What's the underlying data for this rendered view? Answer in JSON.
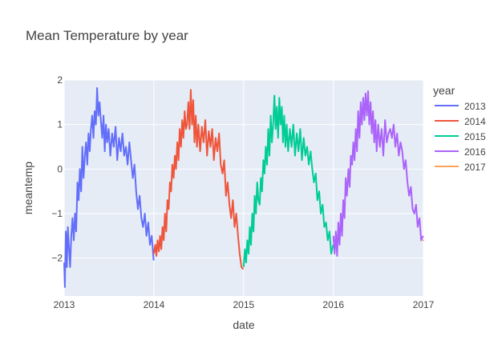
{
  "chart_data": {
    "type": "line",
    "title": "Mean Temperature by year",
    "xlabel": "date",
    "ylabel": "meantemp",
    "x_range": [
      "2013-01-01",
      "2017-01-01"
    ],
    "ylim": [
      -2.85,
      2.0
    ],
    "x_ticks": [
      "2013",
      "2014",
      "2015",
      "2016",
      "2017"
    ],
    "y_ticks": [
      2,
      1,
      0,
      -1,
      -2
    ],
    "grid": true,
    "legend": {
      "title": "year",
      "position": "right"
    },
    "series": [
      {
        "name": "2013",
        "color": "#636efa",
        "x": [
          "2013-01-01",
          "2013-01-04",
          "2013-01-08",
          "2013-01-12",
          "2013-01-16",
          "2013-01-20",
          "2013-01-25",
          "2013-01-30",
          "2013-02-04",
          "2013-02-09",
          "2013-02-14",
          "2013-02-19",
          "2013-02-24",
          "2013-03-01",
          "2013-03-06",
          "2013-03-11",
          "2013-03-16",
          "2013-03-21",
          "2013-03-26",
          "2013-03-31",
          "2013-04-05",
          "2013-04-10",
          "2013-04-15",
          "2013-04-20",
          "2013-04-25",
          "2013-04-30",
          "2013-05-05",
          "2013-05-10",
          "2013-05-15",
          "2013-05-20",
          "2013-05-25",
          "2013-05-30",
          "2013-06-05",
          "2013-06-10",
          "2013-06-15",
          "2013-06-20",
          "2013-06-25",
          "2013-07-01",
          "2013-07-08",
          "2013-07-15",
          "2013-07-22",
          "2013-07-29",
          "2013-08-05",
          "2013-08-12",
          "2013-08-19",
          "2013-08-26",
          "2013-09-02",
          "2013-09-09",
          "2013-09-16",
          "2013-09-23",
          "2013-09-30",
          "2013-10-07",
          "2013-10-14",
          "2013-10-21",
          "2013-10-28",
          "2013-11-04",
          "2013-11-11",
          "2013-11-18",
          "2013-11-25",
          "2013-12-02",
          "2013-12-09",
          "2013-12-16",
          "2013-12-23",
          "2013-12-31"
        ],
        "y": [
          -2.1,
          -2.65,
          -1.4,
          -2.2,
          -1.3,
          -1.7,
          -2.2,
          -1.5,
          -1.1,
          -1.6,
          -1.0,
          -1.4,
          -0.3,
          -0.7,
          0.0,
          -0.5,
          0.5,
          -0.2,
          0.3,
          0.6,
          0.1,
          0.8,
          0.4,
          0.9,
          1.2,
          0.7,
          1.3,
          1.0,
          1.82,
          1.2,
          1.5,
          1.1,
          0.7,
          1.2,
          0.4,
          1.0,
          0.6,
          0.9,
          0.3,
          0.8,
          0.5,
          0.95,
          0.2,
          0.7,
          0.4,
          0.8,
          0.3,
          0.5,
          0.1,
          0.6,
          0.2,
          -0.2,
          0.1,
          -0.5,
          -0.9,
          -0.6,
          -1.1,
          -1.3,
          -1.0,
          -1.5,
          -1.2,
          -1.7,
          -1.5,
          -2.05
        ]
      },
      {
        "name": "2014",
        "color": "#ef553b",
        "x": [
          "2014-01-01",
          "2014-01-06",
          "2014-01-11",
          "2014-01-16",
          "2014-01-21",
          "2014-01-26",
          "2014-01-31",
          "2014-02-05",
          "2014-02-10",
          "2014-02-15",
          "2014-02-20",
          "2014-02-25",
          "2014-03-02",
          "2014-03-07",
          "2014-03-12",
          "2014-03-17",
          "2014-03-22",
          "2014-03-27",
          "2014-04-01",
          "2014-04-06",
          "2014-04-11",
          "2014-04-16",
          "2014-04-21",
          "2014-04-26",
          "2014-05-01",
          "2014-05-06",
          "2014-05-11",
          "2014-05-16",
          "2014-05-21",
          "2014-05-26",
          "2014-05-31",
          "2014-06-05",
          "2014-06-10",
          "2014-06-15",
          "2014-06-20",
          "2014-06-25",
          "2014-07-01",
          "2014-07-08",
          "2014-07-15",
          "2014-07-22",
          "2014-07-29",
          "2014-08-05",
          "2014-08-12",
          "2014-08-19",
          "2014-08-26",
          "2014-09-02",
          "2014-09-09",
          "2014-09-16",
          "2014-09-23",
          "2014-09-30",
          "2014-10-07",
          "2014-10-14",
          "2014-10-21",
          "2014-10-28",
          "2014-11-04",
          "2014-11-11",
          "2014-11-18",
          "2014-11-25",
          "2014-12-02",
          "2014-12-09",
          "2014-12-16",
          "2014-12-23",
          "2014-12-31"
        ],
        "y": [
          -1.9,
          -1.7,
          -1.95,
          -1.6,
          -1.85,
          -1.5,
          -1.8,
          -1.3,
          -1.6,
          -1.0,
          -1.4,
          -0.7,
          -0.9,
          -0.3,
          -0.5,
          0.1,
          -0.2,
          0.3,
          0.0,
          0.6,
          0.2,
          0.9,
          0.5,
          1.1,
          0.7,
          1.3,
          0.9,
          1.0,
          1.5,
          0.9,
          1.78,
          1.0,
          1.55,
          0.6,
          1.2,
          0.5,
          1.0,
          0.4,
          0.95,
          0.6,
          1.1,
          0.3,
          0.85,
          0.5,
          0.9,
          0.2,
          0.7,
          0.4,
          0.8,
          0.1,
          -0.1,
          0.2,
          -0.6,
          -0.3,
          -0.8,
          -1.1,
          -0.7,
          -1.3,
          -1.0,
          -1.5,
          -1.9,
          -2.2,
          -2.25
        ]
      },
      {
        "name": "2015",
        "color": "#00cc96",
        "x": [
          "2015-01-01",
          "2015-01-06",
          "2015-01-11",
          "2015-01-16",
          "2015-01-21",
          "2015-01-26",
          "2015-01-31",
          "2015-02-05",
          "2015-02-10",
          "2015-02-15",
          "2015-02-20",
          "2015-02-25",
          "2015-03-02",
          "2015-03-07",
          "2015-03-12",
          "2015-03-17",
          "2015-03-22",
          "2015-03-27",
          "2015-04-01",
          "2015-04-06",
          "2015-04-11",
          "2015-04-16",
          "2015-04-21",
          "2015-04-26",
          "2015-05-01",
          "2015-05-06",
          "2015-05-11",
          "2015-05-16",
          "2015-05-21",
          "2015-05-26",
          "2015-05-31",
          "2015-06-05",
          "2015-06-10",
          "2015-06-15",
          "2015-06-20",
          "2015-06-25",
          "2015-07-01",
          "2015-07-08",
          "2015-07-15",
          "2015-07-22",
          "2015-07-29",
          "2015-08-05",
          "2015-08-12",
          "2015-08-19",
          "2015-08-26",
          "2015-09-02",
          "2015-09-09",
          "2015-09-16",
          "2015-09-23",
          "2015-09-30",
          "2015-10-07",
          "2015-10-14",
          "2015-10-21",
          "2015-10-28",
          "2015-11-04",
          "2015-11-11",
          "2015-11-18",
          "2015-11-25",
          "2015-12-02",
          "2015-12-09",
          "2015-12-16",
          "2015-12-23",
          "2015-12-31"
        ],
        "y": [
          -2.2,
          -1.8,
          -2.1,
          -1.6,
          -1.9,
          -1.3,
          -1.7,
          -1.0,
          -1.4,
          -0.6,
          -1.0,
          -0.3,
          -0.7,
          -0.8,
          -0.2,
          -0.5,
          0.2,
          -0.1,
          0.5,
          0.1,
          0.9,
          0.3,
          1.2,
          0.6,
          1.0,
          1.65,
          0.9,
          1.4,
          0.7,
          1.6,
          1.0,
          1.4,
          0.6,
          1.2,
          0.5,
          1.0,
          0.4,
          0.9,
          0.5,
          1.0,
          0.3,
          0.8,
          0.4,
          0.9,
          0.2,
          0.7,
          0.3,
          0.5,
          0.1,
          0.4,
          0.0,
          -0.3,
          -0.1,
          -0.7,
          -0.5,
          -1.0,
          -0.8,
          -1.3,
          -1.2,
          -1.6,
          -1.4,
          -1.9,
          -1.7
        ]
      },
      {
        "name": "2016",
        "color": "#ab63fa",
        "x": [
          "2016-01-01",
          "2016-01-06",
          "2016-01-11",
          "2016-01-16",
          "2016-01-21",
          "2016-01-26",
          "2016-01-31",
          "2016-02-05",
          "2016-02-10",
          "2016-02-15",
          "2016-02-20",
          "2016-02-25",
          "2016-03-02",
          "2016-03-07",
          "2016-03-12",
          "2016-03-17",
          "2016-03-22",
          "2016-03-27",
          "2016-04-01",
          "2016-04-06",
          "2016-04-11",
          "2016-04-16",
          "2016-04-21",
          "2016-04-26",
          "2016-05-01",
          "2016-05-06",
          "2016-05-11",
          "2016-05-16",
          "2016-05-21",
          "2016-05-26",
          "2016-05-31",
          "2016-06-05",
          "2016-06-10",
          "2016-06-15",
          "2016-06-20",
          "2016-06-25",
          "2016-07-01",
          "2016-07-08",
          "2016-07-15",
          "2016-07-22",
          "2016-07-29",
          "2016-08-05",
          "2016-08-12",
          "2016-08-19",
          "2016-08-26",
          "2016-09-02",
          "2016-09-09",
          "2016-09-16",
          "2016-09-23",
          "2016-09-30",
          "2016-10-07",
          "2016-10-14",
          "2016-10-21",
          "2016-10-28",
          "2016-11-04",
          "2016-11-11",
          "2016-11-18",
          "2016-11-25",
          "2016-12-02",
          "2016-12-09",
          "2016-12-16",
          "2016-12-23",
          "2016-12-31"
        ],
        "y": [
          -1.5,
          -1.9,
          -1.4,
          -1.95,
          -1.2,
          -1.7,
          -1.0,
          -1.5,
          -0.7,
          -1.1,
          -0.2,
          -0.6,
          0.0,
          -0.4,
          0.3,
          0.1,
          0.6,
          0.2,
          0.9,
          0.4,
          1.3,
          0.7,
          1.5,
          1.0,
          1.6,
          1.1,
          1.7,
          1.2,
          1.75,
          1.0,
          1.5,
          0.8,
          1.3,
          0.6,
          1.1,
          0.4,
          1.0,
          0.5,
          0.9,
          0.3,
          1.1,
          0.6,
          0.8,
          0.9,
          0.7,
          1.0,
          0.5,
          0.8,
          0.3,
          0.6,
          0.4,
          0.0,
          0.2,
          -0.3,
          -0.6,
          -0.4,
          -0.9,
          -1.0,
          -0.8,
          -1.3,
          -1.1,
          -1.6,
          -1.5
        ]
      },
      {
        "name": "2017",
        "color": "#ffa15a",
        "x": [
          "2017-01-01"
        ],
        "y": [
          -1.6
        ]
      }
    ]
  }
}
